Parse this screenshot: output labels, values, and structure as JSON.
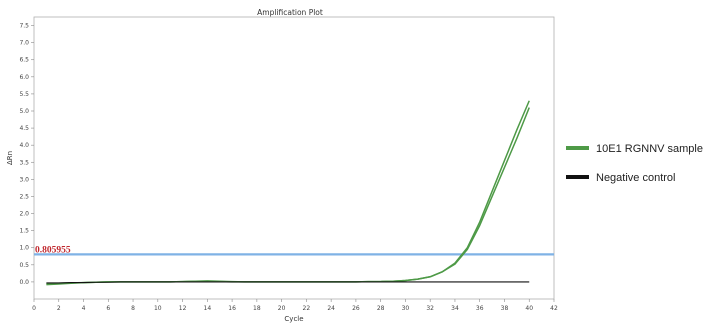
{
  "chart_data": {
    "type": "line",
    "title": "Amplification Plot",
    "xlabel": "Cycle",
    "ylabel": "ΔRn",
    "xlim": [
      0,
      42
    ],
    "ylim": [
      -0.5,
      7.75
    ],
    "x_ticks": [
      0,
      2,
      4,
      6,
      8,
      10,
      12,
      14,
      16,
      18,
      20,
      22,
      24,
      26,
      28,
      30,
      32,
      34,
      36,
      38,
      40,
      42
    ],
    "y_ticks": [
      0.0,
      0.5,
      1.0,
      1.5,
      2.0,
      2.5,
      3.0,
      3.5,
      4.0,
      4.5,
      5.0,
      5.5,
      6.0,
      6.5,
      7.0,
      7.5
    ],
    "y_tick_labels": [
      "0.0",
      "0.5",
      "1.0",
      "1.5",
      "2.0",
      "2.5",
      "3.0",
      "3.5",
      "4.0",
      "4.5",
      "5.0",
      "5.5",
      "6.0",
      "6.5",
      "7.0",
      "7.5"
    ],
    "grid": false,
    "legend_position": "right",
    "threshold": {
      "value": 0.805955,
      "label": "0.805955",
      "color": "#7fb2e5"
    },
    "series": [
      {
        "name": "10E1 RGNNV sample",
        "color": "#4e9a47",
        "x": [
          1,
          2,
          3,
          4,
          5,
          6,
          7,
          8,
          9,
          10,
          11,
          12,
          13,
          14,
          15,
          16,
          17,
          18,
          19,
          20,
          21,
          22,
          23,
          24,
          25,
          26,
          27,
          28,
          29,
          30,
          31,
          32,
          33,
          34,
          35,
          36,
          37,
          38,
          39,
          40
        ],
        "y": [
          -0.08,
          -0.06,
          -0.04,
          -0.02,
          -0.01,
          0.0,
          0.0,
          0.0,
          0.0,
          0.0,
          0.0,
          0.01,
          0.02,
          0.03,
          0.02,
          0.01,
          0.0,
          0.0,
          0.0,
          0.0,
          0.0,
          0.0,
          0.0,
          0.0,
          0.0,
          0.0,
          0.01,
          0.01,
          0.02,
          0.04,
          0.08,
          0.15,
          0.3,
          0.55,
          1.0,
          1.75,
          2.65,
          3.55,
          4.45,
          5.3
        ]
      },
      {
        "name": "",
        "color": "#4e9a47",
        "x": [
          1,
          2,
          3,
          4,
          5,
          6,
          7,
          8,
          9,
          10,
          11,
          12,
          13,
          14,
          15,
          16,
          17,
          18,
          19,
          20,
          21,
          22,
          23,
          24,
          25,
          26,
          27,
          28,
          29,
          30,
          31,
          32,
          33,
          34,
          35,
          36,
          37,
          38,
          39,
          40
        ],
        "y": [
          -0.05,
          -0.04,
          -0.03,
          -0.02,
          -0.01,
          0.0,
          0.0,
          0.0,
          0.0,
          0.0,
          0.0,
          0.01,
          0.02,
          0.02,
          0.01,
          0.0,
          0.0,
          0.0,
          0.0,
          0.0,
          0.0,
          0.0,
          0.0,
          0.0,
          0.0,
          0.0,
          0.01,
          0.01,
          0.02,
          0.04,
          0.08,
          0.15,
          0.3,
          0.52,
          0.95,
          1.65,
          2.5,
          3.35,
          4.2,
          5.1
        ]
      },
      {
        "name": "Negative control",
        "color": "#111111",
        "x": [
          1,
          2,
          3,
          4,
          5,
          6,
          7,
          8,
          9,
          10,
          11,
          12,
          13,
          14,
          15,
          16,
          17,
          18,
          19,
          20,
          21,
          22,
          23,
          24,
          25,
          26,
          27,
          28,
          29,
          30,
          31,
          32,
          33,
          34,
          35,
          36,
          37,
          38,
          39,
          40
        ],
        "y": [
          -0.03,
          -0.03,
          -0.02,
          -0.02,
          -0.01,
          -0.01,
          0.0,
          0.0,
          0.0,
          0.0,
          0.0,
          0.0,
          0.0,
          0.0,
          0.0,
          0.0,
          0.0,
          0.0,
          0.0,
          0.0,
          0.0,
          0.0,
          0.0,
          0.0,
          0.0,
          0.0,
          0.0,
          0.0,
          0.0,
          0.0,
          0.0,
          0.0,
          0.0,
          0.0,
          0.0,
          0.0,
          0.0,
          0.0,
          0.0,
          0.0
        ]
      }
    ]
  },
  "legend": {
    "items": [
      {
        "label": "10E1 RGNNV sample",
        "color": "#4e9a47"
      },
      {
        "label": "Negative control",
        "color": "#111111"
      }
    ]
  }
}
